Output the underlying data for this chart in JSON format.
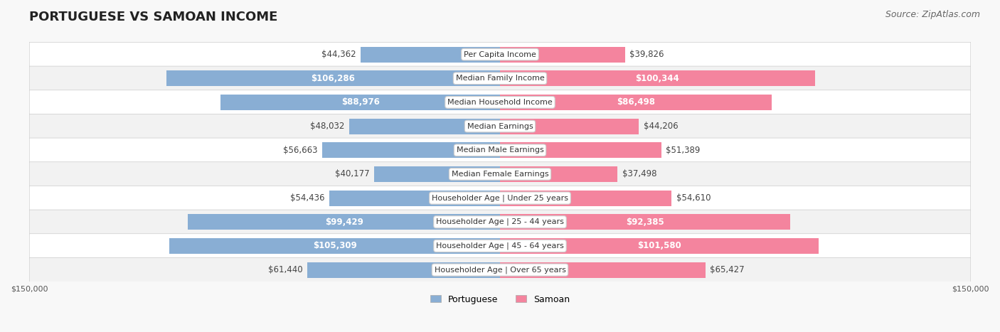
{
  "title": "PORTUGUESE VS SAMOAN INCOME",
  "source": "Source: ZipAtlas.com",
  "categories": [
    "Per Capita Income",
    "Median Family Income",
    "Median Household Income",
    "Median Earnings",
    "Median Male Earnings",
    "Median Female Earnings",
    "Householder Age | Under 25 years",
    "Householder Age | 25 - 44 years",
    "Householder Age | 45 - 64 years",
    "Householder Age | Over 65 years"
  ],
  "portuguese_values": [
    44362,
    106286,
    88976,
    48032,
    56663,
    40177,
    54436,
    99429,
    105309,
    61440
  ],
  "samoan_values": [
    39826,
    100344,
    86498,
    44206,
    51389,
    37498,
    54610,
    92385,
    101580,
    65427
  ],
  "portuguese_labels": [
    "$44,362",
    "$106,286",
    "$88,976",
    "$48,032",
    "$56,663",
    "$40,177",
    "$54,436",
    "$99,429",
    "$105,309",
    "$61,440"
  ],
  "samoan_labels": [
    "$39,826",
    "$100,344",
    "$86,498",
    "$44,206",
    "$51,389",
    "$37,498",
    "$54,610",
    "$92,385",
    "$101,580",
    "$65,427"
  ],
  "portuguese_color": "#89aed4",
  "samoan_color": "#f4849e",
  "portuguese_color_bright": "#5b8ec4",
  "samoan_color_bright": "#f05a7e",
  "max_value": 150000,
  "background_color": "#f5f5f5",
  "row_bg_color": "#ffffff",
  "row_alt_bg_color": "#f0f0f0",
  "label_inside_threshold": 70000,
  "title_fontsize": 13,
  "source_fontsize": 9,
  "bar_label_fontsize": 8.5,
  "category_fontsize": 8,
  "axis_label_fontsize": 8
}
